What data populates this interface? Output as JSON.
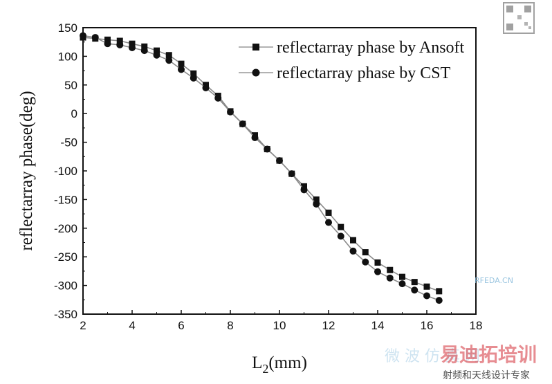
{
  "chart_data": {
    "type": "line",
    "xlabel": {
      "main": "L",
      "sub": "2",
      "tail": "(mm)"
    },
    "ylabel": "reflectarray phase(deg)",
    "xlim": [
      2,
      18
    ],
    "ylim": [
      -350,
      150
    ],
    "xticks": [
      2,
      4,
      6,
      8,
      10,
      12,
      14,
      16,
      18
    ],
    "yticks": [
      150,
      100,
      50,
      0,
      -50,
      -100,
      -150,
      -200,
      -250,
      -300,
      -350
    ],
    "legend_position": "top-right",
    "series": [
      {
        "name": "reflectarray phase by Ansoft",
        "marker": "square",
        "color": "#111111",
        "x": [
          2,
          2.5,
          3,
          3.5,
          4,
          4.5,
          5,
          5.5,
          6,
          6.5,
          7,
          7.5,
          8,
          8.5,
          9,
          9.5,
          10,
          10.5,
          11,
          11.5,
          12,
          12.5,
          13,
          13.5,
          14,
          14.5,
          15,
          15.5,
          16,
          16.5
        ],
        "y": [
          133,
          131,
          129,
          127,
          122,
          117,
          110,
          102,
          87,
          70,
          50,
          31,
          4,
          -18,
          -38,
          -62,
          -82,
          -105,
          -127,
          -150,
          -173,
          -198,
          -221,
          -242,
          -260,
          -273,
          -285,
          -294,
          -302,
          -310
        ]
      },
      {
        "name": "reflectarray phase by CST",
        "marker": "circle",
        "color": "#111111",
        "x": [
          2,
          2.5,
          3,
          3.5,
          4,
          4.5,
          5,
          5.5,
          6,
          6.5,
          7,
          7.5,
          8,
          8.5,
          9,
          9.5,
          10,
          10.5,
          11,
          11.5,
          12,
          12.5,
          13,
          13.5,
          14,
          14.5,
          15,
          15.5,
          16,
          16.5
        ],
        "y": [
          136,
          133,
          122,
          120,
          115,
          110,
          102,
          93,
          77,
          62,
          45,
          27,
          3,
          -18,
          -42,
          -62,
          -82,
          -105,
          -133,
          -158,
          -190,
          -214,
          -240,
          -259,
          -276,
          -287,
          -297,
          -308,
          -318,
          -326
        ]
      }
    ]
  },
  "watermark": {
    "site": "RFEDA.CN",
    "brand": "易迪拓培训",
    "tagline": "射频和天线设计专家",
    "faded": "微 波 仿 真 网"
  }
}
